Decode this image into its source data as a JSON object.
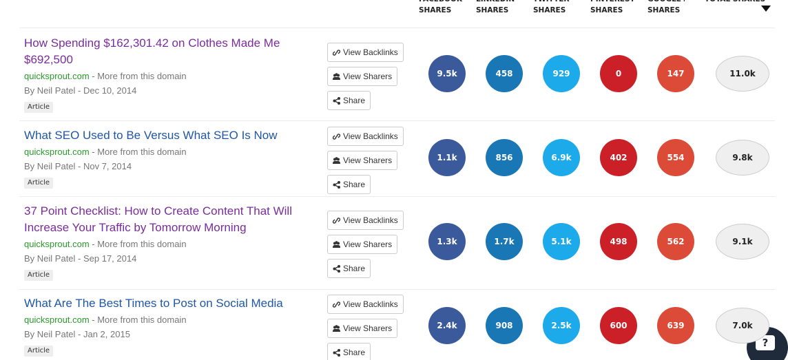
{
  "header": {
    "columns": [
      "FACEBOOK\nSHARES",
      "LINKEDIN\nSHARES",
      "TWITTER\nSHARES",
      "PINTEREST\nSHARES",
      "GOOGLE+\nSHARES",
      "TOTAL SHARES"
    ]
  },
  "articles": [
    {
      "title": "How Spending $162,301.42 on Clothes Made Me $692,500",
      "domain": "quicksprout.com",
      "more": "- More from this domain",
      "byline": "By Neil Patel - Dec 10, 2014",
      "tag": "Article",
      "buttons": [
        "View Backlinks",
        "View Sharers",
        "Share"
      ],
      "shares": [
        "9.5k",
        "458",
        "929",
        "0",
        "147"
      ],
      "total": "11.0k"
    },
    {
      "title": "What SEO Used to Be Versus What SEO Is Now",
      "domain": "quicksprout.com",
      "more": "- More from this domain",
      "byline": "By Neil Patel - Nov 7, 2014",
      "tag": "Article",
      "buttons": [
        "View Backlinks",
        "View Sharers",
        "Share"
      ],
      "shares": [
        "1.1k",
        "856",
        "6.9k",
        "402",
        "554"
      ],
      "total": "9.8k"
    },
    {
      "title": "37 Point Checklist: How to Create Content That Will Increase Your Traffic by Tomorrow Morning",
      "domain": "quicksprout.com",
      "more": "- More from this domain",
      "byline": "By Neil Patel - Sep 17, 2014",
      "tag": "Article",
      "buttons": [
        "View Backlinks",
        "View Sharers",
        "Share"
      ],
      "shares": [
        "1.3k",
        "1.7k",
        "5.1k",
        "498",
        "562"
      ],
      "total": "9.1k"
    },
    {
      "title": "What Are The Best Times to Post on Social Media",
      "domain": "quicksprout.com",
      "more": "- More from this domain",
      "byline": "By Neil Patel - Jan 2, 2015",
      "tag": "Article",
      "buttons": [
        "View Backlinks",
        "View Sharers",
        "Share"
      ],
      "shares": [
        "2.4k",
        "908",
        "2.5k",
        "600",
        "639"
      ],
      "total": "7.0k"
    }
  ],
  "help": "?"
}
